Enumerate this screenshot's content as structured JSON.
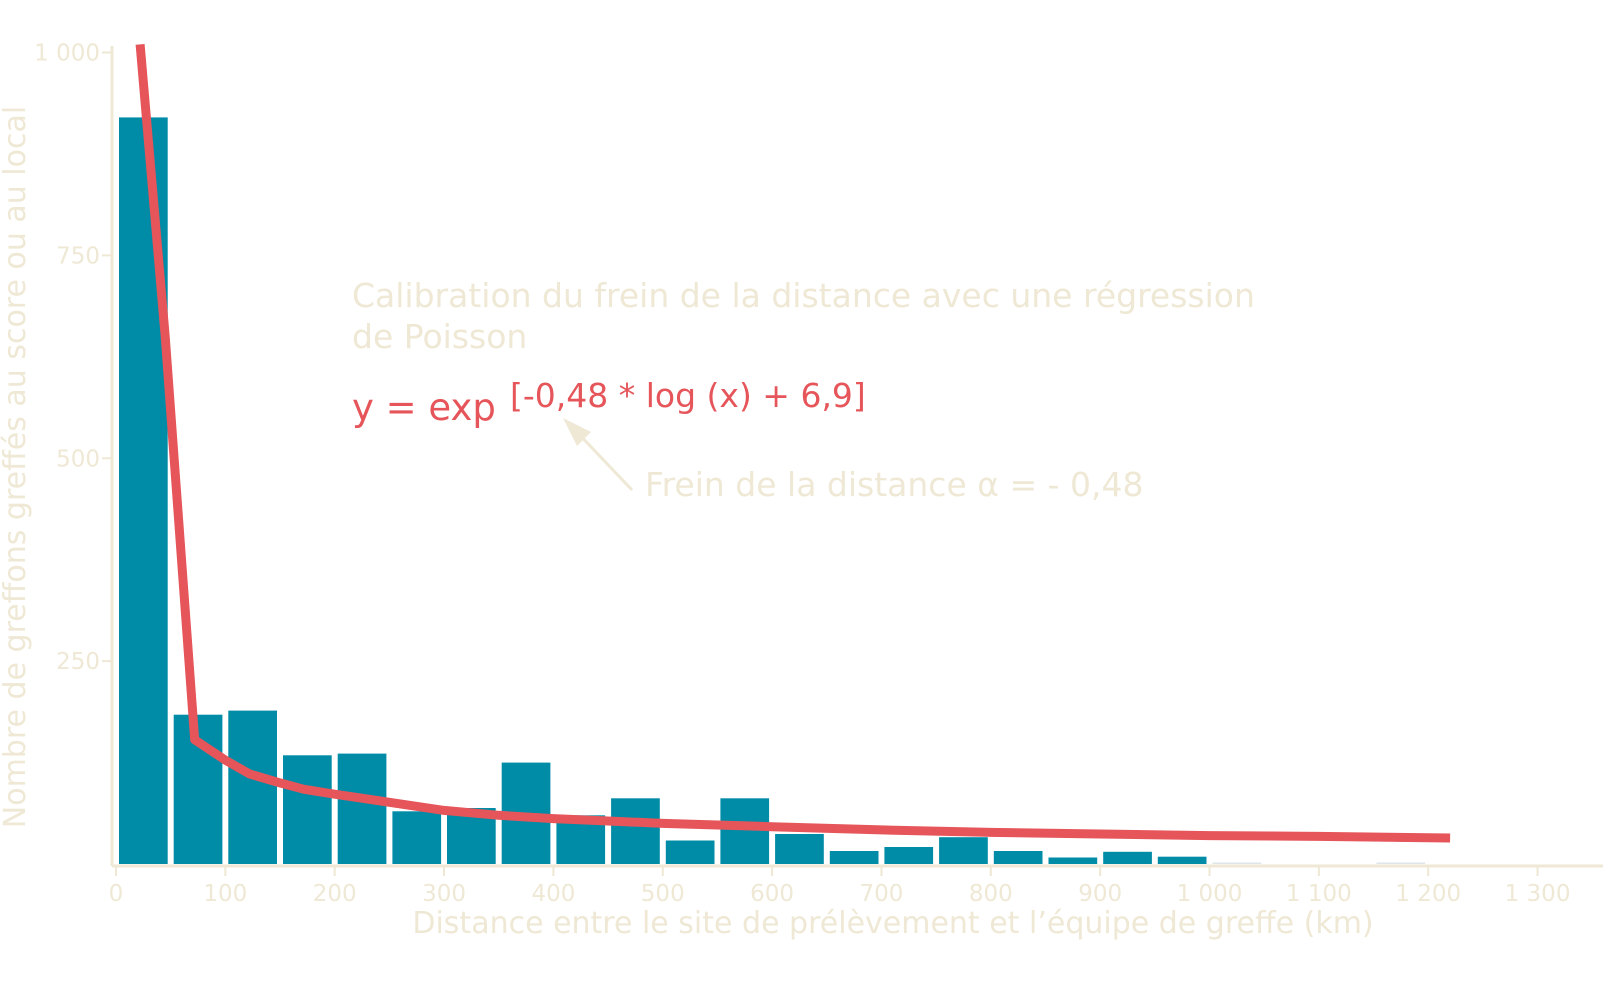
{
  "colors": {
    "bar": "#008ba6",
    "curve": "#e5555a",
    "axis": "#eee8d5",
    "annotation": "#eee8d5"
  },
  "chart_data": {
    "type": "bar",
    "xlabel": "Distance entre le site de prélèvement et l’équipe de greffe (km)",
    "ylabel": "Nombre de greffons greffés au score ou au local",
    "xlim": [
      0,
      1350
    ],
    "ylim": [
      0,
      1000
    ],
    "x_ticks": [
      0,
      100,
      200,
      300,
      400,
      500,
      600,
      700,
      800,
      900,
      1000,
      1100,
      1200,
      1300
    ],
    "x_tick_labels": [
      "0",
      "100",
      "200",
      "300",
      "400",
      "500",
      "600",
      "700",
      "800",
      "900",
      "1 000",
      "1 100",
      "1 200",
      "1 300"
    ],
    "y_ticks": [
      250,
      500,
      750,
      1000
    ],
    "y_tick_labels": [
      "250",
      "500",
      "750",
      "1 000"
    ],
    "grid": false,
    "bin_width": 50,
    "bins": [
      {
        "start": 0,
        "end": 50,
        "value": 920
      },
      {
        "start": 50,
        "end": 100,
        "value": 184
      },
      {
        "start": 100,
        "end": 150,
        "value": 189
      },
      {
        "start": 150,
        "end": 200,
        "value": 134
      },
      {
        "start": 200,
        "end": 250,
        "value": 136
      },
      {
        "start": 250,
        "end": 300,
        "value": 65
      },
      {
        "start": 300,
        "end": 350,
        "value": 69
      },
      {
        "start": 350,
        "end": 400,
        "value": 125
      },
      {
        "start": 400,
        "end": 450,
        "value": 60
      },
      {
        "start": 450,
        "end": 500,
        "value": 81
      },
      {
        "start": 500,
        "end": 550,
        "value": 29
      },
      {
        "start": 550,
        "end": 600,
        "value": 81
      },
      {
        "start": 600,
        "end": 650,
        "value": 37
      },
      {
        "start": 650,
        "end": 700,
        "value": 16
      },
      {
        "start": 700,
        "end": 750,
        "value": 21
      },
      {
        "start": 750,
        "end": 800,
        "value": 33
      },
      {
        "start": 800,
        "end": 850,
        "value": 16
      },
      {
        "start": 850,
        "end": 900,
        "value": 8
      },
      {
        "start": 900,
        "end": 950,
        "value": 15
      },
      {
        "start": 950,
        "end": 1000,
        "value": 9
      },
      {
        "start": 1000,
        "end": 1050,
        "value": 1
      },
      {
        "start": 1050,
        "end": 1100,
        "value": 0
      },
      {
        "start": 1100,
        "end": 1150,
        "value": 0
      },
      {
        "start": 1150,
        "end": 1200,
        "value": 1
      }
    ],
    "fit_curve": [
      {
        "x": 22,
        "y": 1010
      },
      {
        "x": 45,
        "y": 650
      },
      {
        "x": 72,
        "y": 153
      },
      {
        "x": 100,
        "y": 128
      },
      {
        "x": 122,
        "y": 111
      },
      {
        "x": 150,
        "y": 100
      },
      {
        "x": 172,
        "y": 92
      },
      {
        "x": 200,
        "y": 86
      },
      {
        "x": 250,
        "y": 76
      },
      {
        "x": 300,
        "y": 66
      },
      {
        "x": 350,
        "y": 60
      },
      {
        "x": 400,
        "y": 56
      },
      {
        "x": 450,
        "y": 53
      },
      {
        "x": 500,
        "y": 50
      },
      {
        "x": 550,
        "y": 48
      },
      {
        "x": 600,
        "y": 46
      },
      {
        "x": 700,
        "y": 42
      },
      {
        "x": 800,
        "y": 39
      },
      {
        "x": 900,
        "y": 37
      },
      {
        "x": 1000,
        "y": 35
      },
      {
        "x": 1100,
        "y": 34
      },
      {
        "x": 1220,
        "y": 32
      }
    ],
    "annotations": {
      "title_line1": "Calibration du frein de la distance avec une régression",
      "title_line2": "de Poisson",
      "equation_base": "y = exp",
      "equation_exponent": "[-0,48 * log (x) + 6,9]",
      "alpha_label": "Frein de la distance α = - 0,48"
    }
  }
}
